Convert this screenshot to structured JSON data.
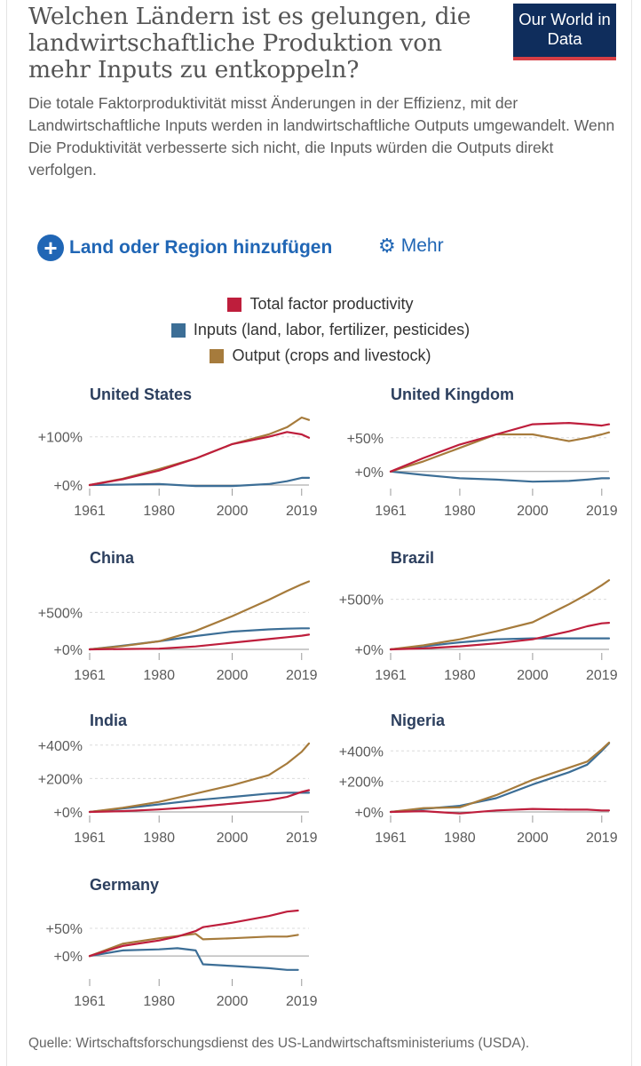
{
  "header": {
    "title": "Welchen Ländern ist es gelungen, die landwirtschaftliche Produktion von mehr Inputs zu entkoppeln?",
    "subtitle": "Die totale Faktorproduktivität misst Änderungen in der Effizienz, mit der Landwirtschaftliche Inputs werden in landwirtschaftliche Outputs umgewandelt. Wenn\nDie Produktivität verbesserte sich nicht, die Inputs würden die Outputs direkt verfolgen.",
    "logo": "Our World in Data"
  },
  "controls": {
    "add_country": "Land oder Region hinzufügen",
    "more": "Mehr",
    "add_icon": "plus-circle-icon",
    "more_icon": "gear-icon"
  },
  "legend": [
    {
      "label": "Total factor productivity",
      "color": "#be1e3c"
    },
    {
      "label": "Inputs (land, labor, fertilizer, pesticides)",
      "color": "#3c6e96"
    },
    {
      "label": "Output (crops and livestock)",
      "color": "#a67b3c"
    }
  ],
  "footer": {
    "source": "Quelle: Wirtschaftsforschungsdienst des US-Landwirtschaftsministeriums (USDA)."
  },
  "chart_data": [
    {
      "type": "line",
      "title": "United States",
      "x": [
        1961,
        1970,
        1980,
        1990,
        2000,
        2010,
        2015,
        2019,
        2021
      ],
      "x_ticks": [
        1961,
        1980,
        2000,
        2019
      ],
      "ylim": [
        0,
        140
      ],
      "y_ticks": [
        0,
        100
      ],
      "y_tick_labels": [
        "+0%",
        "+100%"
      ],
      "series": [
        {
          "name": "Total factor productivity",
          "values": [
            0,
            12,
            30,
            55,
            85,
            100,
            110,
            105,
            98
          ]
        },
        {
          "name": "Inputs (land, labor, fertilizer, pesticides)",
          "values": [
            0,
            1,
            2,
            -2,
            -2,
            2,
            8,
            15,
            15
          ]
        },
        {
          "name": "Output (crops and livestock)",
          "values": [
            0,
            13,
            33,
            55,
            85,
            105,
            120,
            140,
            135
          ]
        }
      ]
    },
    {
      "type": "line",
      "title": "United Kingdom",
      "x": [
        1961,
        1970,
        1980,
        1990,
        2000,
        2010,
        2015,
        2019,
        2021
      ],
      "x_ticks": [
        1961,
        1980,
        2000,
        2019
      ],
      "ylim": [
        -20,
        80
      ],
      "y_ticks": [
        0,
        50
      ],
      "y_tick_labels": [
        "+0%",
        "+50%"
      ],
      "series": [
        {
          "name": "Total factor productivity",
          "values": [
            0,
            20,
            40,
            55,
            70,
            72,
            70,
            68,
            70
          ]
        },
        {
          "name": "Inputs (land, labor, fertilizer, pesticides)",
          "values": [
            0,
            -5,
            -10,
            -12,
            -15,
            -14,
            -12,
            -10,
            -10
          ]
        },
        {
          "name": "Output (crops and livestock)",
          "values": [
            0,
            15,
            35,
            55,
            55,
            45,
            50,
            55,
            58
          ]
        }
      ]
    },
    {
      "type": "line",
      "title": "China",
      "x": [
        1961,
        1970,
        1980,
        1990,
        2000,
        2010,
        2015,
        2019,
        2021
      ],
      "x_ticks": [
        1961,
        1980,
        2000,
        2019
      ],
      "ylim": [
        0,
        950
      ],
      "y_ticks": [
        0,
        500
      ],
      "y_tick_labels": [
        "+0%",
        "+500%"
      ],
      "series": [
        {
          "name": "Total factor productivity",
          "values": [
            0,
            5,
            10,
            40,
            90,
            140,
            165,
            185,
            200
          ]
        },
        {
          "name": "Inputs (land, labor, fertilizer, pesticides)",
          "values": [
            0,
            50,
            110,
            180,
            240,
            270,
            280,
            285,
            285
          ]
        },
        {
          "name": "Output (crops and livestock)",
          "values": [
            0,
            45,
            110,
            250,
            450,
            670,
            790,
            880,
            920
          ]
        }
      ]
    },
    {
      "type": "line",
      "title": "Brazil",
      "x": [
        1961,
        1970,
        1980,
        1990,
        2000,
        2010,
        2015,
        2019,
        2021
      ],
      "x_ticks": [
        1961,
        1980,
        2000,
        2019
      ],
      "ylim": [
        0,
        700
      ],
      "y_ticks": [
        0,
        500
      ],
      "y_tick_labels": [
        "+0%",
        "+500%"
      ],
      "series": [
        {
          "name": "Total factor productivity",
          "values": [
            0,
            10,
            30,
            60,
            100,
            180,
            230,
            260,
            265
          ]
        },
        {
          "name": "Inputs (land, labor, fertilizer, pesticides)",
          "values": [
            0,
            30,
            70,
            100,
            110,
            110,
            110,
            110,
            110
          ]
        },
        {
          "name": "Output (crops and livestock)",
          "values": [
            0,
            40,
            100,
            180,
            270,
            450,
            550,
            640,
            690
          ]
        }
      ]
    },
    {
      "type": "line",
      "title": "India",
      "x": [
        1961,
        1970,
        1980,
        1990,
        2000,
        2010,
        2015,
        2019,
        2021
      ],
      "x_ticks": [
        1961,
        1980,
        2000,
        2019
      ],
      "ylim": [
        0,
        420
      ],
      "y_ticks": [
        0,
        200,
        400
      ],
      "y_tick_labels": [
        "+0%",
        "+200%",
        "+400%"
      ],
      "series": [
        {
          "name": "Total factor productivity",
          "values": [
            0,
            5,
            15,
            30,
            50,
            70,
            90,
            120,
            130
          ]
        },
        {
          "name": "Inputs (land, labor, fertilizer, pesticides)",
          "values": [
            0,
            20,
            45,
            70,
            90,
            110,
            115,
            115,
            115
          ]
        },
        {
          "name": "Output (crops and livestock)",
          "values": [
            0,
            25,
            60,
            110,
            160,
            220,
            290,
            360,
            410
          ]
        }
      ]
    },
    {
      "type": "line",
      "title": "Nigeria",
      "x": [
        1961,
        1970,
        1980,
        1990,
        2000,
        2010,
        2015,
        2019,
        2021
      ],
      "x_ticks": [
        1961,
        1980,
        2000,
        2019
      ],
      "ylim": [
        0,
        460
      ],
      "y_ticks": [
        0,
        200,
        400
      ],
      "y_tick_labels": [
        "+0%",
        "+200%",
        "+400%"
      ],
      "series": [
        {
          "name": "Total factor productivity",
          "values": [
            0,
            5,
            -10,
            10,
            20,
            15,
            15,
            10,
            10
          ]
        },
        {
          "name": "Inputs (land, labor, fertilizer, pesticides)",
          "values": [
            0,
            20,
            40,
            90,
            180,
            260,
            310,
            400,
            450
          ]
        },
        {
          "name": "Output (crops and livestock)",
          "values": [
            0,
            25,
            30,
            110,
            210,
            290,
            330,
            410,
            455
          ]
        }
      ]
    },
    {
      "type": "line",
      "title": "Germany",
      "x": [
        1961,
        1970,
        1980,
        1985,
        1990,
        1992,
        2000,
        2010,
        2015,
        2018
      ],
      "x_ticks": [
        1961,
        1980,
        2000,
        2019
      ],
      "ylim": [
        -35,
        90
      ],
      "y_ticks": [
        0,
        50
      ],
      "y_tick_labels": [
        "+0%",
        "+50%"
      ],
      "series": [
        {
          "name": "Total factor productivity",
          "values": [
            0,
            18,
            28,
            35,
            45,
            52,
            60,
            72,
            80,
            82
          ]
        },
        {
          "name": "Inputs (land, labor, fertilizer, pesticides)",
          "values": [
            0,
            10,
            12,
            14,
            10,
            -15,
            -18,
            -22,
            -25,
            -25
          ]
        },
        {
          "name": "Output (crops and livestock)",
          "values": [
            0,
            22,
            32,
            36,
            40,
            30,
            32,
            35,
            35,
            38
          ]
        }
      ]
    }
  ]
}
